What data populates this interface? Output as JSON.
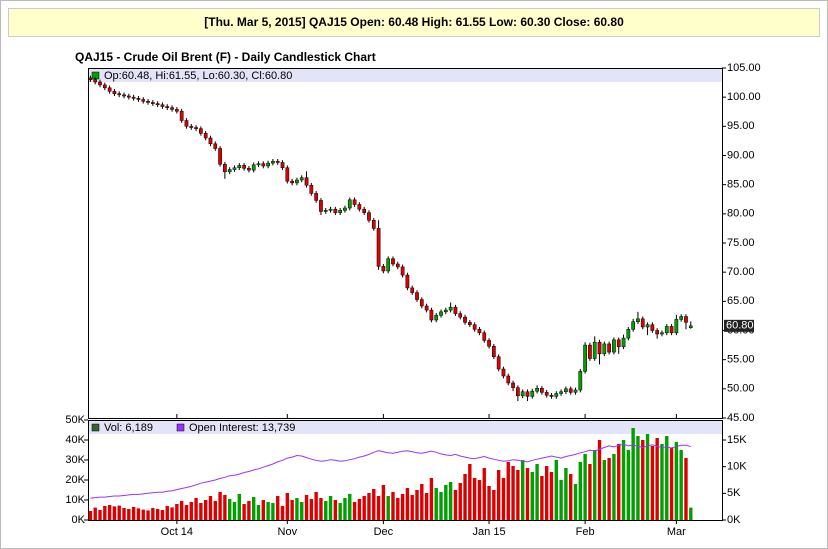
{
  "header": {
    "text": "[Thu. Mar 5, 2015] QAJ15 Open: 60.48 High: 61.55 Low: 60.30 Close: 60.80"
  },
  "chart_data": [
    {
      "type": "candlestick",
      "title": "QAJ15 - Crude Oil Brent (F) - Daily Candlestick Chart",
      "legend": "Op:60.48, Hi:61.55, Lo:60.30, Cl:60.80",
      "last_value_label": "60.80",
      "up_color": "#00a000",
      "down_color": "#dd0000",
      "open": [
        103.3,
        103.0,
        102.6,
        102.1,
        101.6,
        101.0,
        100.6,
        100.4,
        100.2,
        100.0,
        99.8,
        99.6,
        99.3,
        99.1,
        98.9,
        98.7,
        98.4,
        98.2,
        97.9,
        97.6,
        96.0,
        95.0,
        94.8,
        94.6,
        93.8,
        93.0,
        92.0,
        91.2,
        88.5,
        87.2,
        87.6,
        87.9,
        88.3,
        87.8,
        87.5,
        88.4,
        88.6,
        88.2,
        88.7,
        89.0,
        88.8,
        87.9,
        85.6,
        85.3,
        85.8,
        86.2,
        84.9,
        83.5,
        82.3,
        80.4,
        80.6,
        80.8,
        80.2,
        80.6,
        81.0,
        82.4,
        81.6,
        80.8,
        80.2,
        78.9,
        77.5,
        71.0,
        70.2,
        72.3,
        71.4,
        70.9,
        69.5,
        67.3,
        66.5,
        65.3,
        64.2,
        63.5,
        61.8,
        62.6,
        63.2,
        63.5,
        64.0,
        62.9,
        62.3,
        61.4,
        61.0,
        60.2,
        59.6,
        58.3,
        57.3,
        55.5,
        53.4,
        52.2,
        51.0,
        50.2,
        48.8,
        49.5,
        48.7,
        49.6,
        50.1,
        49.4,
        48.9,
        48.7,
        49.2,
        49.5,
        50.0,
        49.4,
        49.8,
        53.0,
        57.5,
        55.2,
        58.0,
        56.0,
        57.7,
        56.3,
        58.4,
        57.2,
        58.7,
        60.2,
        61.5,
        62.0,
        60.6,
        61.0,
        60.0,
        59.4,
        59.6,
        60.7,
        59.6,
        61.9,
        62.4,
        60.48
      ],
      "high": [
        103.7,
        103.4,
        103.0,
        102.5,
        102.0,
        101.4,
        101.0,
        100.8,
        100.6,
        100.4,
        100.2,
        100.0,
        99.7,
        99.5,
        99.3,
        99.1,
        98.8,
        98.6,
        98.3,
        98.0,
        96.4,
        95.4,
        95.2,
        95.0,
        94.2,
        93.4,
        92.4,
        91.6,
        88.9,
        88.0,
        88.3,
        88.7,
        88.7,
        88.2,
        88.8,
        89.0,
        89.0,
        89.1,
        89.4,
        89.4,
        89.2,
        88.3,
        86.0,
        86.2,
        86.6,
        87.3,
        85.3,
        83.9,
        82.7,
        81.0,
        81.2,
        81.2,
        81.0,
        81.4,
        82.8,
        82.8,
        82.0,
        81.2,
        80.6,
        79.3,
        78.9,
        71.4,
        72.7,
        72.7,
        71.8,
        71.3,
        69.9,
        67.7,
        66.9,
        65.7,
        64.6,
        63.9,
        63.0,
        63.6,
        63.9,
        64.8,
        64.4,
        63.3,
        62.7,
        61.8,
        61.4,
        60.6,
        60.0,
        58.7,
        57.7,
        55.9,
        53.8,
        52.6,
        51.4,
        50.6,
        49.9,
        49.9,
        50.0,
        50.6,
        50.5,
        49.8,
        49.3,
        49.6,
        49.9,
        50.4,
        50.4,
        50.2,
        53.4,
        58.0,
        57.9,
        59.0,
        58.4,
        58.1,
        58.1,
        58.8,
        58.8,
        59.3,
        60.6,
        62.0,
        63.2,
        62.4,
        61.4,
        61.4,
        60.4,
        60.0,
        61.1,
        61.1,
        62.7,
        62.8,
        62.8,
        61.55
      ],
      "low": [
        102.6,
        102.2,
        101.7,
        101.2,
        100.6,
        100.2,
        100.0,
        99.8,
        99.6,
        99.4,
        99.2,
        98.9,
        98.7,
        98.5,
        98.3,
        98.0,
        97.8,
        97.5,
        97.2,
        95.6,
        94.6,
        94.4,
        94.2,
        93.4,
        92.6,
        91.6,
        90.8,
        88.1,
        86.0,
        86.8,
        87.2,
        87.5,
        87.4,
        87.1,
        87.1,
        88.0,
        87.8,
        87.8,
        88.3,
        88.4,
        87.5,
        85.2,
        84.9,
        84.9,
        85.4,
        84.5,
        83.1,
        81.9,
        79.8,
        80.0,
        80.2,
        79.8,
        79.8,
        80.2,
        80.6,
        81.2,
        80.4,
        79.8,
        78.5,
        77.1,
        70.4,
        69.8,
        69.8,
        71.0,
        70.5,
        69.1,
        66.9,
        66.1,
        64.9,
        63.8,
        63.1,
        61.4,
        61.4,
        62.2,
        62.8,
        63.1,
        62.5,
        61.9,
        61.0,
        60.6,
        59.8,
        59.2,
        57.9,
        56.9,
        55.1,
        53.0,
        51.8,
        50.6,
        49.6,
        47.9,
        48.4,
        47.9,
        48.3,
        49.2,
        49.0,
        48.5,
        48.3,
        48.3,
        48.8,
        49.1,
        49.0,
        49.0,
        49.4,
        52.6,
        54.8,
        54.8,
        54.2,
        55.6,
        55.9,
        55.9,
        56.0,
        56.8,
        58.3,
        59.8,
        61.1,
        60.2,
        59.2,
        59.6,
        58.6,
        59.0,
        59.2,
        59.2,
        59.2,
        61.5,
        60.2,
        60.3
      ],
      "close": [
        103.0,
        102.6,
        102.1,
        101.6,
        101.0,
        100.6,
        100.4,
        100.2,
        100.0,
        99.8,
        99.6,
        99.3,
        99.1,
        98.9,
        98.7,
        98.4,
        98.2,
        97.9,
        97.6,
        96.0,
        95.0,
        94.8,
        94.6,
        93.8,
        93.0,
        92.0,
        91.2,
        88.5,
        87.2,
        87.6,
        87.9,
        88.3,
        87.8,
        87.5,
        88.4,
        88.6,
        88.2,
        88.7,
        89.0,
        88.8,
        87.9,
        85.6,
        85.3,
        85.8,
        86.2,
        84.9,
        83.5,
        82.3,
        80.4,
        80.6,
        80.8,
        80.2,
        80.6,
        81.0,
        82.4,
        81.6,
        80.8,
        80.2,
        78.9,
        77.5,
        71.0,
        70.2,
        72.3,
        71.4,
        70.9,
        69.5,
        67.3,
        66.5,
        65.3,
        64.2,
        63.5,
        61.8,
        62.6,
        63.2,
        63.5,
        64.0,
        62.9,
        62.3,
        61.4,
        61.0,
        60.2,
        59.6,
        58.3,
        57.3,
        55.5,
        53.4,
        52.2,
        51.0,
        50.2,
        48.8,
        49.5,
        48.7,
        49.6,
        50.1,
        49.4,
        48.9,
        48.7,
        49.2,
        49.5,
        50.0,
        49.4,
        49.8,
        53.0,
        57.5,
        55.2,
        58.0,
        56.0,
        57.7,
        56.3,
        58.4,
        57.2,
        58.7,
        60.2,
        61.5,
        62.0,
        60.6,
        61.0,
        60.0,
        59.4,
        59.6,
        60.7,
        59.6,
        61.9,
        62.4,
        61.4,
        60.8
      ],
      "xlim": [
        -0.5,
        131.5
      ],
      "ylim": [
        45,
        105
      ],
      "yticks": [
        {
          "value": 105,
          "label": "105.00"
        },
        {
          "value": 100,
          "label": "100.00"
        },
        {
          "value": 95,
          "label": "95.00"
        },
        {
          "value": 90,
          "label": "90.00"
        },
        {
          "value": 85,
          "label": "85.00"
        },
        {
          "value": 80,
          "label": "80.00"
        },
        {
          "value": 75,
          "label": "75.00"
        },
        {
          "value": 70,
          "label": "70.00"
        },
        {
          "value": 65,
          "label": "65.00"
        },
        {
          "value": 60,
          "label": "60.00"
        },
        {
          "value": 55,
          "label": "55.00"
        },
        {
          "value": 50,
          "label": "50.00"
        },
        {
          "value": 45,
          "label": "45.00"
        }
      ]
    },
    {
      "type": "bar",
      "series": [
        {
          "name": "Vol: 6,189",
          "color": "#336633",
          "values": [
            4500,
            6200,
            5000,
            7000,
            7500,
            6800,
            7200,
            6000,
            5500,
            6500,
            5800,
            5200,
            4800,
            6000,
            5500,
            5000,
            7000,
            6300,
            8000,
            9500,
            7500,
            9000,
            11000,
            8500,
            10000,
            12000,
            9500,
            14000,
            12500,
            10500,
            9000,
            13000,
            8000,
            9500,
            11500,
            7500,
            10000,
            9000,
            8500,
            12000,
            7000,
            13500,
            10000,
            11000,
            9000,
            12500,
            10500,
            14000,
            11000,
            9500,
            12000,
            10000,
            8500,
            11000,
            13000,
            9000,
            10500,
            12000,
            13500,
            15500,
            12000,
            17500,
            12000,
            14000,
            11000,
            13000,
            16000,
            12500,
            15000,
            18000,
            13500,
            21000,
            16000,
            14000,
            17500,
            19000,
            15000,
            18500,
            23000,
            28000,
            21000,
            20000,
            26000,
            17000,
            15000,
            25000,
            21000,
            29000,
            27000,
            25000,
            30000,
            26000,
            24000,
            28000,
            22000,
            27000,
            24000,
            30000,
            20000,
            26000,
            23000,
            18000,
            29000,
            33000,
            28000,
            35000,
            40000,
            30000,
            31000,
            33000,
            38000,
            40000,
            35000,
            46000,
            42000,
            40000,
            43000,
            37000,
            41000,
            38000,
            42000,
            36000,
            39000,
            35000,
            31000,
            6189
          ]
        },
        {
          "name": "Open Interest: 13,739",
          "color": "#9933ff",
          "axis": "y2",
          "values": [
            4100,
            4200,
            4300,
            4300,
            4400,
            4500,
            4500,
            4600,
            4700,
            4800,
            4800,
            4900,
            5000,
            5100,
            5200,
            5200,
            5400,
            5500,
            5700,
            5900,
            6100,
            6300,
            6600,
            6900,
            7100,
            7300,
            7500,
            7800,
            8000,
            8300,
            8400,
            8600,
            8900,
            9100,
            9400,
            9600,
            9900,
            10200,
            10500,
            10900,
            11200,
            11600,
            11800,
            12100,
            12000,
            11700,
            11400,
            11200,
            11000,
            11100,
            11300,
            11200,
            11000,
            11100,
            11300,
            11500,
            11800,
            12000,
            12300,
            12700,
            13000,
            12800,
            12600,
            12500,
            12700,
            12900,
            13000,
            12800,
            12600,
            12500,
            12700,
            12900,
            12700,
            12400,
            12200,
            12100,
            12300,
            12000,
            11800,
            11600,
            11500,
            11700,
            11900,
            11600,
            11400,
            11200,
            11000,
            11100,
            11300,
            11200,
            11000,
            10900,
            11200,
            11400,
            11600,
            11800,
            12000,
            11800,
            11600,
            11900,
            12100,
            12300,
            12600,
            12800,
            13100,
            12900,
            13300,
            13600,
            13900,
            13700,
            14000,
            14200,
            13900,
            14100,
            13800,
            13600,
            13900,
            14100,
            13800,
            13600,
            13700,
            13500,
            13800,
            14000,
            14000,
            13739
          ]
        }
      ],
      "xlim": [
        -0.5,
        131.5
      ],
      "xticks": [
        {
          "value": 18,
          "label": "Oct 14"
        },
        {
          "value": 41,
          "label": "Nov"
        },
        {
          "value": 61,
          "label": "Dec"
        },
        {
          "value": 83,
          "label": "Jan 15"
        },
        {
          "value": 103,
          "label": "Feb"
        },
        {
          "value": 122,
          "label": "Mar"
        }
      ],
      "ylim": [
        0,
        50000
      ],
      "yticks": [
        {
          "value": 0,
          "label": "0K"
        },
        {
          "value": 10000,
          "label": "10K"
        },
        {
          "value": 20000,
          "label": "20K"
        },
        {
          "value": 30000,
          "label": "30K"
        },
        {
          "value": 40000,
          "label": "40K"
        },
        {
          "value": 50000,
          "label": "50K"
        }
      ],
      "y2lim": [
        0,
        18750
      ],
      "y2ticks": [
        {
          "value": 0,
          "label": "0K"
        },
        {
          "value": 5000,
          "label": "5K"
        },
        {
          "value": 10000,
          "label": "10K"
        },
        {
          "value": 15000,
          "label": "15K"
        }
      ]
    }
  ]
}
